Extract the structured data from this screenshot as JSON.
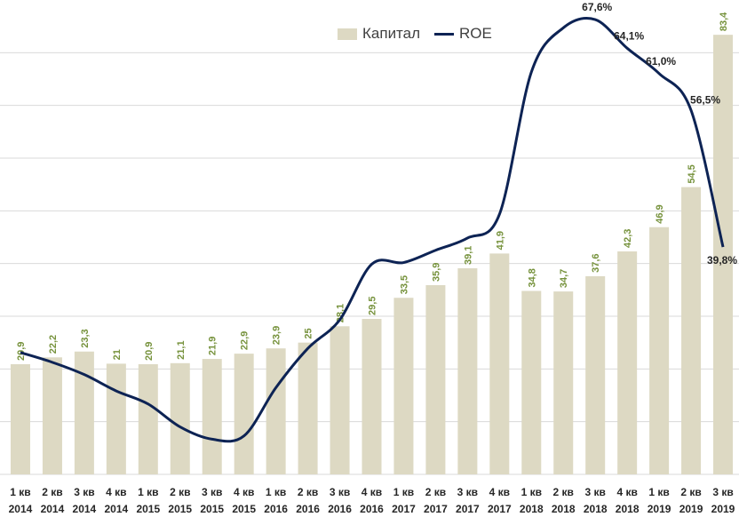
{
  "chart_data": {
    "type": "bar+line",
    "categories": [
      [
        "1 кв",
        "2014"
      ],
      [
        "2 кв",
        "2014"
      ],
      [
        "3 кв",
        "2014"
      ],
      [
        "4 кв",
        "2014"
      ],
      [
        "1 кв",
        "2015"
      ],
      [
        "2 кв",
        "2015"
      ],
      [
        "3 кв",
        "2015"
      ],
      [
        "4 кв",
        "2015"
      ],
      [
        "1 кв",
        "2016"
      ],
      [
        "2 кв",
        "2016"
      ],
      [
        "3 кв",
        "2016"
      ],
      [
        "4 кв",
        "2016"
      ],
      [
        "1 кв",
        "2017"
      ],
      [
        "2 кв",
        "2017"
      ],
      [
        "3 кв",
        "2017"
      ],
      [
        "4 кв",
        "2017"
      ],
      [
        "1 кв",
        "2018"
      ],
      [
        "2 кв",
        "2018"
      ],
      [
        "3 кв",
        "2018"
      ],
      [
        "4 кв",
        "2018"
      ],
      [
        "1 кв",
        "2019"
      ],
      [
        "2 кв",
        "2019"
      ],
      [
        "3 кв",
        "2019"
      ]
    ],
    "series": [
      {
        "name": "Капитал",
        "kind": "bar",
        "values": [
          20.9,
          22.2,
          23.3,
          21,
          20.9,
          21.1,
          21.9,
          22.9,
          23.9,
          25,
          28.1,
          29.5,
          33.5,
          35.9,
          39.1,
          41.9,
          34.8,
          34.7,
          37.6,
          42.3,
          46.9,
          54.5,
          83.4
        ],
        "value_labels": [
          "20,9",
          "22,2",
          "23,3",
          "21",
          "20,9",
          "21,1",
          "21,9",
          "22,9",
          "23,9",
          "25",
          "28,1",
          "29,5",
          "33,5",
          "35,9",
          "39,1",
          "41,9",
          "34,8",
          "34,7",
          "37,6",
          "42,3",
          "46,9",
          "54,5",
          "83,4"
        ]
      },
      {
        "name": "ROE",
        "kind": "line",
        "values": [
          26.9,
          25.7,
          24.2,
          22.2,
          20.6,
          17.8,
          16.3,
          16.7,
          22.6,
          27.4,
          30.9,
          37.7,
          37.9,
          39.4,
          40.9,
          43.8,
          61.2,
          66.6,
          67.6,
          64.1,
          61.0,
          56.5,
          39.8
        ],
        "labels": {
          "18": "67,6%",
          "19": "64,1%",
          "20": "61,0%",
          "21": "56,5%",
          "22": "39,8%"
        }
      }
    ],
    "bar_ylim": [
      0,
      90
    ],
    "line_ylim": [
      12,
      70
    ],
    "grid": true,
    "legend": "top-center",
    "colors": {
      "bar": "#ddd9c3",
      "bar_label": "#76923c",
      "line": "#0d2354",
      "grid": "#d9d9d9",
      "text": "#262626"
    }
  }
}
